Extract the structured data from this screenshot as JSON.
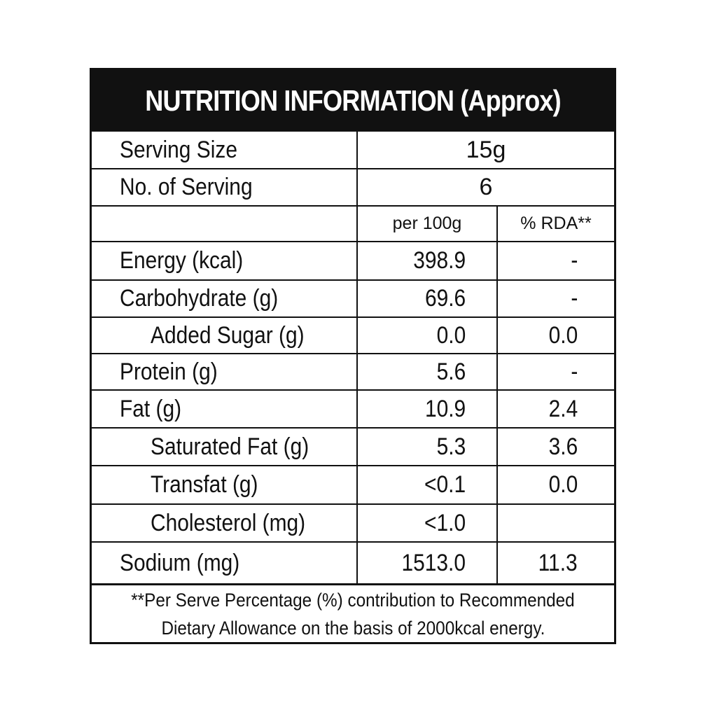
{
  "title": "NUTRITION INFORMATION (Approx)",
  "serving": {
    "size_label": "Serving Size",
    "size_value": "15g",
    "count_label": "No. of Serving",
    "count_value": "6"
  },
  "columns": {
    "per100": "per 100g",
    "rda": "% RDA**"
  },
  "nutrients": [
    {
      "label": "Energy (kcal)",
      "per100": "398.9",
      "rda": "-"
    },
    {
      "label": "Carbohydrate (g)",
      "per100": "69.6",
      "rda": "-"
    },
    {
      "label": "Added Sugar (g)",
      "per100": "0.0",
      "rda": "0.0"
    },
    {
      "label": "Protein (g)",
      "per100": "5.6",
      "rda": "-"
    },
    {
      "label": "Fat (g)",
      "per100": "10.9",
      "rda": "2.4"
    },
    {
      "label": "Saturated Fat (g)",
      "per100": "5.3",
      "rda": "3.6"
    },
    {
      "label": "Transfat (g)",
      "per100": "<0.1",
      "rda": "0.0"
    },
    {
      "label": "Cholesterol (mg)",
      "per100": "<1.0",
      "rda": ""
    },
    {
      "label": "Sodium (mg)",
      "per100": "1513.0",
      "rda": "11.3"
    }
  ],
  "footnote": {
    "line1": "**Per Serve Percentage (%) contribution to Recommended",
    "line2": "Dietary Allowance on the basis of 2000kcal energy."
  }
}
